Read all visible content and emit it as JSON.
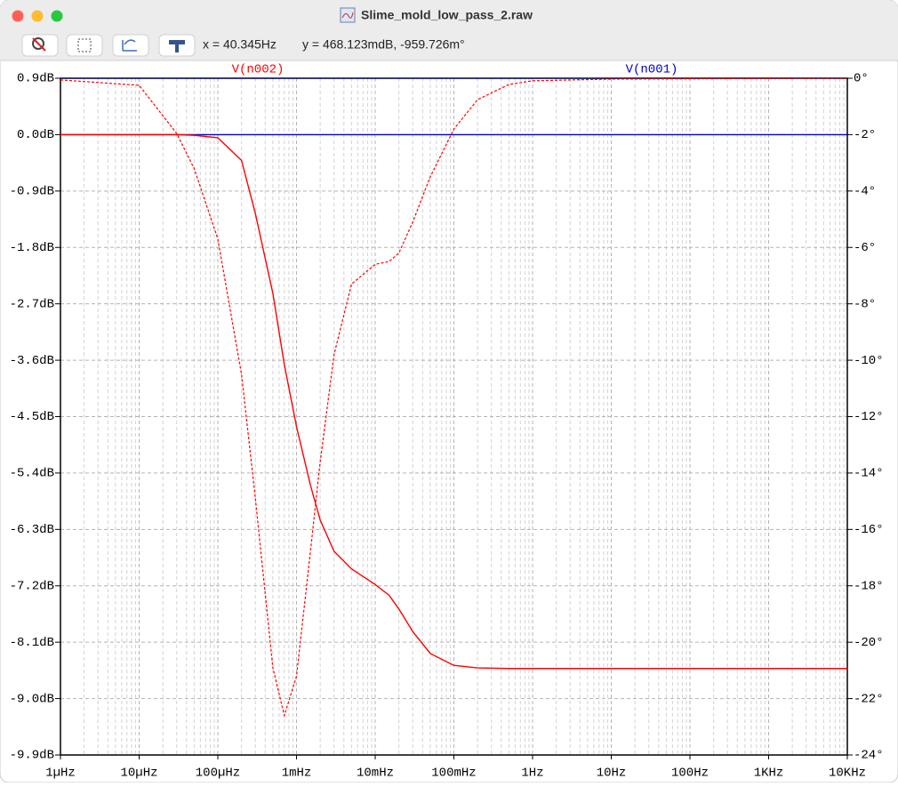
{
  "window": {
    "title": "Slime_mold_low_pass_2.raw"
  },
  "toolbar": {
    "cursor_x": "x = 40.345Hz",
    "cursor_y": "y = 468.123mdB, -959.726m°"
  },
  "chart_data": {
    "type": "bode",
    "x": [
      1e-06,
      1e-05,
      3e-05,
      5e-05,
      0.0001,
      0.0002,
      0.0003,
      0.0005,
      0.0007,
      0.001,
      0.0015,
      0.002,
      0.003,
      0.005,
      0.01,
      0.015,
      0.02,
      0.03,
      0.05,
      0.1,
      0.2,
      0.5,
      1,
      10,
      10000
    ],
    "xlim": [
      1e-06,
      10000
    ],
    "log_x": true,
    "grid": true,
    "minor_grid": true,
    "xticks": [
      {
        "value": 1e-06,
        "label": "1µHz"
      },
      {
        "value": 1e-05,
        "label": "10µHz"
      },
      {
        "value": 0.0001,
        "label": "100µHz"
      },
      {
        "value": 0.001,
        "label": "1mHz"
      },
      {
        "value": 0.01,
        "label": "10mHz"
      },
      {
        "value": 0.1,
        "label": "100mHz"
      },
      {
        "value": 1,
        "label": "1Hz"
      },
      {
        "value": 10,
        "label": "10Hz"
      },
      {
        "value": 100,
        "label": "100Hz"
      },
      {
        "value": 1000,
        "label": "1KHz"
      },
      {
        "value": 10000,
        "label": "10KHz"
      }
    ],
    "ylim": [
      -9.9,
      0.9
    ],
    "yticks": [
      {
        "value": 0.9,
        "label": "0.9dB"
      },
      {
        "value": 0,
        "label": "0.0dB"
      },
      {
        "value": -0.9,
        "label": "-0.9dB"
      },
      {
        "value": -1.8,
        "label": "-1.8dB"
      },
      {
        "value": -2.7,
        "label": "-2.7dB"
      },
      {
        "value": -3.6,
        "label": "-3.6dB"
      },
      {
        "value": -4.5,
        "label": "-4.5dB"
      },
      {
        "value": -5.4,
        "label": "-5.4dB"
      },
      {
        "value": -6.3,
        "label": "-6.3dB"
      },
      {
        "value": -7.2,
        "label": "-7.2dB"
      },
      {
        "value": -8.1,
        "label": "-8.1dB"
      },
      {
        "value": -9,
        "label": "-9.0dB"
      },
      {
        "value": -9.9,
        "label": "-9.9dB"
      }
    ],
    "y2lim": [
      -24,
      0
    ],
    "y2ticks": [
      {
        "value": 0,
        "label": "0°"
      },
      {
        "value": -2,
        "label": "-2°"
      },
      {
        "value": -4,
        "label": "-4°"
      },
      {
        "value": -6,
        "label": "-6°"
      },
      {
        "value": -8,
        "label": "-8°"
      },
      {
        "value": -10,
        "label": "-10°"
      },
      {
        "value": -12,
        "label": "-12°"
      },
      {
        "value": -14,
        "label": "-14°"
      },
      {
        "value": -16,
        "label": "-16°"
      },
      {
        "value": -18,
        "label": "-18°"
      },
      {
        "value": -20,
        "label": "-20°"
      },
      {
        "value": -22,
        "label": "-22°"
      },
      {
        "value": -24,
        "label": "-24°"
      }
    ],
    "series": [
      {
        "name": "V(n001)",
        "color": "#0000c8",
        "magnitude": [
          0,
          0,
          0,
          0,
          0,
          0,
          0,
          0,
          0,
          0,
          0,
          0,
          0,
          0,
          0,
          0,
          0,
          0,
          0,
          0,
          0,
          0,
          0,
          0,
          0
        ],
        "phase": [
          0,
          0,
          0,
          0,
          0,
          0,
          0,
          0,
          0,
          0,
          0,
          0,
          0,
          0,
          0,
          0,
          0,
          0,
          0,
          0,
          0,
          0,
          0,
          0,
          0
        ]
      },
      {
        "name": "V(n002)",
        "color": "#ff0000",
        "magnitude": [
          0,
          0,
          0,
          -0.01,
          -0.05,
          -0.41,
          -1.26,
          -2.53,
          -3.67,
          -4.66,
          -5.59,
          -6.15,
          -6.65,
          -6.93,
          -7.18,
          -7.35,
          -7.57,
          -7.93,
          -8.28,
          -8.47,
          -8.51,
          -8.52,
          -8.52,
          -8.52,
          -8.52
        ],
        "phase": [
          -0.06,
          -0.25,
          -1.96,
          -3.2,
          -5.7,
          -10.5,
          -14.9,
          -20.9,
          -22.6,
          -21.2,
          -16.8,
          -13.6,
          -9.8,
          -7.3,
          -6.6,
          -6.5,
          -6.2,
          -5.1,
          -3.5,
          -1.8,
          -0.76,
          -0.22,
          -0.09,
          -0.03,
          0
        ]
      }
    ]
  }
}
